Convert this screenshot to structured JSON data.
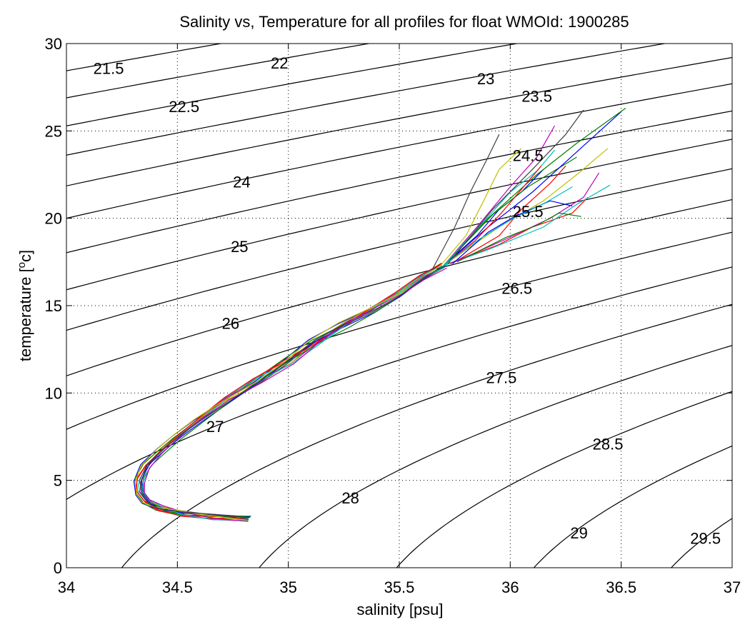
{
  "chart_data": {
    "type": "line",
    "title": "Salinity vs, Temperature for all profiles for float WMOId: 1900285",
    "xlabel": "salinity [psu]",
    "ylabel_parts": {
      "before": "temperature [",
      "superscript": "o",
      "after": "c]"
    },
    "xlim": [
      34,
      37
    ],
    "ylim": [
      0,
      30
    ],
    "xticks": [
      34,
      34.5,
      35,
      35.5,
      36,
      36.5,
      37
    ],
    "xtick_labels": [
      "34",
      "34.5",
      "35",
      "35.5",
      "36",
      "36.5",
      "37"
    ],
    "yticks": [
      0,
      5,
      10,
      15,
      20,
      25,
      30
    ],
    "ytick_labels": [
      "0",
      "5",
      "10",
      "15",
      "20",
      "25",
      "30"
    ],
    "grid": true,
    "density_contours": {
      "levels": [
        21.5,
        22,
        22.5,
        23,
        23.5,
        24,
        24.5,
        25,
        25.5,
        26,
        26.5,
        27,
        27.5,
        28,
        28.5,
        29,
        29.5
      ],
      "labels": [
        {
          "text": "21.5",
          "x": 34.19,
          "y": 28.6
        },
        {
          "text": "22",
          "x": 34.96,
          "y": 28.9
        },
        {
          "text": "22.5",
          "x": 34.53,
          "y": 26.4
        },
        {
          "text": "23",
          "x": 35.89,
          "y": 28.0
        },
        {
          "text": "23.5",
          "x": 36.12,
          "y": 27.0
        },
        {
          "text": "24",
          "x": 34.79,
          "y": 22.1
        },
        {
          "text": "24.5",
          "x": 36.08,
          "y": 23.6
        },
        {
          "text": "25",
          "x": 34.78,
          "y": 18.4
        },
        {
          "text": "25.5",
          "x": 36.08,
          "y": 20.4
        },
        {
          "text": "26",
          "x": 34.74,
          "y": 14.0
        },
        {
          "text": "26.5",
          "x": 36.03,
          "y": 16.0
        },
        {
          "text": "27",
          "x": 34.67,
          "y": 8.1
        },
        {
          "text": "27.5",
          "x": 35.96,
          "y": 10.9
        },
        {
          "text": "28",
          "x": 35.28,
          "y": 4.0
        },
        {
          "text": "28.5",
          "x": 36.44,
          "y": 7.1
        },
        {
          "text": "29",
          "x": 36.31,
          "y": 2.0
        },
        {
          "text": "29.5",
          "x": 36.88,
          "y": 1.7
        }
      ]
    },
    "mean_profile": {
      "s": [
        34.82,
        34.66,
        34.52,
        34.42,
        34.36,
        34.33,
        34.33,
        34.36,
        34.42,
        34.5,
        34.6,
        34.72,
        34.86,
        35.0,
        35.12,
        35.25,
        35.38,
        35.5,
        35.6,
        35.7
      ],
      "t": [
        2.8,
        2.9,
        3.1,
        3.4,
        3.8,
        4.3,
        5.0,
        5.8,
        6.6,
        7.5,
        8.5,
        9.6,
        10.7,
        11.8,
        12.9,
        13.9,
        14.8,
        15.7,
        16.6,
        17.3
      ]
    },
    "upper_profiles": [
      {
        "color": "#0000ff",
        "s": [
          35.7,
          35.85,
          35.95,
          36.05,
          36.15
        ],
        "t": [
          17.3,
          19.0,
          20.5,
          21.5,
          22.8
        ]
      },
      {
        "color": "#008000",
        "s": [
          35.7,
          35.8,
          35.92,
          36.08,
          36.3
        ],
        "t": [
          17.3,
          18.6,
          20.2,
          21.8,
          23.5
        ]
      },
      {
        "color": "#ff0000",
        "s": [
          35.72,
          35.95,
          36.1,
          36.28,
          36.35
        ],
        "t": [
          17.4,
          18.5,
          19.5,
          20.3,
          21.2
        ]
      },
      {
        "color": "#00bfbf",
        "s": [
          35.68,
          35.9,
          36.15,
          36.3,
          36.45
        ],
        "t": [
          17.2,
          18.2,
          19.5,
          20.8,
          21.9
        ]
      },
      {
        "color": "#bf00bf",
        "s": [
          35.7,
          35.85,
          36.0,
          36.12,
          36.2
        ],
        "t": [
          17.3,
          19.5,
          21.8,
          23.5,
          25.3
        ]
      },
      {
        "color": "#bfbf00",
        "s": [
          35.68,
          35.8,
          35.88,
          35.95,
          36.05
        ],
        "t": [
          17.2,
          19.0,
          21.0,
          22.8,
          24.0
        ]
      },
      {
        "color": "#3f3f3f",
        "s": [
          35.65,
          35.75,
          35.82,
          35.9,
          35.95
        ],
        "t": [
          17.1,
          19.5,
          21.5,
          23.5,
          24.8
        ]
      },
      {
        "color": "#0000ff",
        "s": [
          35.72,
          35.9,
          36.1,
          36.3,
          36.5
        ],
        "t": [
          17.5,
          19.5,
          21.5,
          23.8,
          26.1
        ]
      },
      {
        "color": "#008000",
        "s": [
          35.7,
          35.9,
          36.12,
          36.3,
          36.52
        ],
        "t": [
          17.3,
          20.0,
          22.5,
          24.3,
          26.3
        ]
      },
      {
        "color": "#ff0000",
        "s": [
          35.75,
          35.95,
          36.05,
          36.18,
          36.25
        ],
        "t": [
          17.5,
          19.0,
          20.5,
          22.0,
          23.0
        ]
      },
      {
        "color": "#00bfbf",
        "s": [
          35.7,
          35.88,
          36.0,
          36.12,
          36.2
        ],
        "t": [
          17.3,
          19.8,
          21.5,
          22.7,
          23.9
        ]
      },
      {
        "color": "#bf00bf",
        "s": [
          35.73,
          35.98,
          36.18,
          36.33,
          36.4
        ],
        "t": [
          17.4,
          18.8,
          20.0,
          21.2,
          22.6
        ]
      },
      {
        "color": "#bfbf00",
        "s": [
          35.7,
          35.95,
          36.15,
          36.3,
          36.44
        ],
        "t": [
          17.3,
          19.5,
          21.0,
          22.5,
          24.0
        ]
      },
      {
        "color": "#3f3f3f",
        "s": [
          35.72,
          35.92,
          36.1,
          36.25,
          36.33
        ],
        "t": [
          17.4,
          20.5,
          22.8,
          24.8,
          26.2
        ]
      },
      {
        "color": "#0000ff",
        "s": [
          35.74,
          35.9,
          36.02,
          36.18,
          36.28
        ],
        "t": [
          17.4,
          19.2,
          20.1,
          21.0,
          20.7
        ]
      },
      {
        "color": "#008000",
        "s": [
          35.76,
          35.98,
          36.12,
          36.22,
          36.32
        ],
        "t": [
          17.5,
          18.9,
          19.6,
          20.3,
          20.1
        ]
      },
      {
        "color": "#ff0000",
        "s": [
          35.7,
          35.84,
          35.96,
          36.06,
          36.14
        ],
        "t": [
          17.3,
          18.7,
          20.3,
          21.8,
          23.0
        ]
      },
      {
        "color": "#00bfbf",
        "s": [
          35.7,
          35.86,
          36.0,
          36.16,
          36.28
        ],
        "t": [
          17.3,
          18.8,
          19.9,
          20.9,
          21.8
        ]
      }
    ]
  }
}
